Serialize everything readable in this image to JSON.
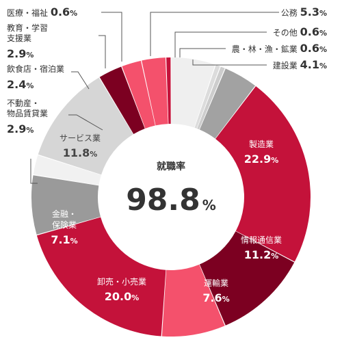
{
  "chart_data": {
    "type": "donut",
    "center_label": "就職率",
    "center_value": "98.8",
    "center_unit": "%",
    "unit": "%",
    "slices": [
      {
        "name": "公務",
        "value": 5.3,
        "color": "#efefef"
      },
      {
        "name": "その他",
        "value": 0.6,
        "color": "#dcdcdc"
      },
      {
        "name": "農・林・漁・鉱業",
        "value": 0.6,
        "color": "#cdcdcd"
      },
      {
        "name": "建設業",
        "value": 4.1,
        "color": "#a2a2a2"
      },
      {
        "name": "製造業",
        "value": 22.9,
        "color": "#c4123a"
      },
      {
        "name": "情報通信業",
        "value": 11.2,
        "color": "#7c0021"
      },
      {
        "name": "運輸業",
        "value": 7.6,
        "color": "#f4516c"
      },
      {
        "name": "卸売・小売業",
        "value": 20.0,
        "color": "#c4123a"
      },
      {
        "name": "金融・保険業",
        "value": 7.1,
        "color": "#9a9a9a"
      },
      {
        "name": "",
        "value": 2.4,
        "color": "#f1f1f1"
      },
      {
        "name": "サービス業",
        "value": 11.8,
        "color": "#d6d6d6"
      },
      {
        "name": "不動産・物品賃貸業",
        "value": 2.9,
        "color": "#7c0021"
      },
      {
        "name": "飲食店・宿泊業",
        "value": 2.4,
        "color": "#f4516c"
      },
      {
        "name": "教育・学習支援業",
        "value": 2.9,
        "color": "#f4516c"
      },
      {
        "name": "医療・福祉",
        "value": 0.6,
        "color": "#c4123a"
      }
    ]
  }
}
